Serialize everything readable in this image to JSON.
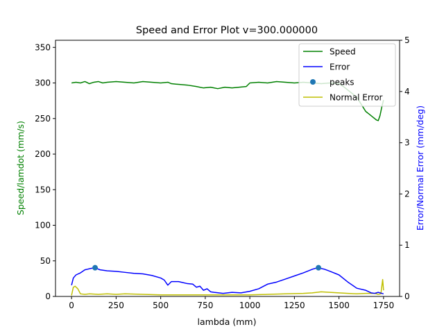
{
  "chart_data": {
    "type": "line",
    "title": "Speed and Error Plot v=300.000000",
    "xlabel": "lambda (mm)",
    "ylabel_left": "Speed/lamdot (mm/s)",
    "ylabel_right": "Error/Normal Error (mm/deg)",
    "xlim": [
      -90,
      1840
    ],
    "ylim_left": [
      0,
      360
    ],
    "ylim_right": [
      0,
      5
    ],
    "x_ticks": [
      0,
      250,
      500,
      750,
      1000,
      1250,
      1500,
      1750
    ],
    "y_left_ticks": [
      0,
      50,
      100,
      150,
      200,
      250,
      300,
      350
    ],
    "y_right_ticks": [
      0,
      1,
      2,
      3,
      4,
      5
    ],
    "grid": false,
    "legend_position": "top-right",
    "colors": {
      "speed": "#008000",
      "error": "#0000ff",
      "peaks": "#1f77b4",
      "normal_error": "#bfbf00",
      "left_label": "#008000",
      "right_label": "#0000ff"
    },
    "series": [
      {
        "name": "Speed",
        "axis": "left",
        "x": [
          0,
          25,
          50,
          75,
          100,
          125,
          150,
          175,
          200,
          250,
          300,
          350,
          400,
          450,
          500,
          540,
          560,
          600,
          650,
          700,
          740,
          780,
          820,
          860,
          900,
          940,
          980,
          1000,
          1050,
          1100,
          1150,
          1200,
          1250,
          1300,
          1350,
          1400,
          1450,
          1500,
          1530,
          1560,
          1600,
          1630,
          1650,
          1670,
          1690,
          1700,
          1710,
          1720,
          1730,
          1740,
          1750
        ],
        "values": [
          300,
          301,
          300,
          302,
          299,
          301,
          302,
          300,
          301,
          302,
          301,
          300,
          302,
          301,
          300,
          301,
          299,
          298,
          297,
          295,
          293,
          294,
          292,
          294,
          293,
          294,
          295,
          300,
          301,
          300,
          302,
          301,
          300,
          301,
          300,
          299,
          300,
          299,
          294,
          288,
          280,
          268,
          260,
          256,
          252,
          250,
          248,
          247,
          254,
          266,
          276
        ]
      },
      {
        "name": "Error",
        "axis": "right",
        "x": [
          0,
          10,
          25,
          50,
          75,
          100,
          130,
          160,
          200,
          250,
          300,
          350,
          400,
          450,
          500,
          520,
          540,
          560,
          600,
          650,
          680,
          700,
          720,
          740,
          760,
          780,
          800,
          850,
          900,
          950,
          1000,
          1050,
          1100,
          1150,
          1200,
          1250,
          1300,
          1350,
          1380,
          1420,
          1450,
          1500,
          1550,
          1600,
          1650,
          1680,
          1700,
          1720,
          1740,
          1750
        ],
        "values": [
          0.22,
          0.36,
          0.42,
          0.46,
          0.52,
          0.54,
          0.56,
          0.52,
          0.5,
          0.49,
          0.47,
          0.45,
          0.44,
          0.41,
          0.36,
          0.32,
          0.22,
          0.29,
          0.29,
          0.25,
          0.24,
          0.18,
          0.2,
          0.12,
          0.15,
          0.09,
          0.08,
          0.06,
          0.08,
          0.07,
          0.1,
          0.15,
          0.24,
          0.28,
          0.34,
          0.4,
          0.46,
          0.53,
          0.56,
          0.53,
          0.49,
          0.42,
          0.28,
          0.16,
          0.12,
          0.07,
          0.06,
          0.08,
          0.06,
          0.05
        ]
      },
      {
        "name": "Normal Error",
        "axis": "right",
        "x": [
          0,
          10,
          20,
          35,
          50,
          75,
          100,
          150,
          200,
          250,
          300,
          400,
          500,
          600,
          700,
          800,
          900,
          1000,
          1100,
          1200,
          1300,
          1350,
          1400,
          1450,
          1500,
          1550,
          1600,
          1650,
          1700,
          1720,
          1735,
          1745,
          1750
        ],
        "values": [
          0.02,
          0.18,
          0.2,
          0.15,
          0.05,
          0.04,
          0.05,
          0.04,
          0.05,
          0.04,
          0.05,
          0.04,
          0.03,
          0.03,
          0.03,
          0.03,
          0.03,
          0.03,
          0.04,
          0.05,
          0.06,
          0.07,
          0.09,
          0.08,
          0.07,
          0.06,
          0.05,
          0.06,
          0.06,
          0.04,
          0.05,
          0.33,
          0.12
        ]
      }
    ],
    "peaks": {
      "name": "peaks",
      "axis": "right",
      "x": [
        132,
        1385
      ],
      "values": [
        0.56,
        0.56
      ]
    }
  }
}
